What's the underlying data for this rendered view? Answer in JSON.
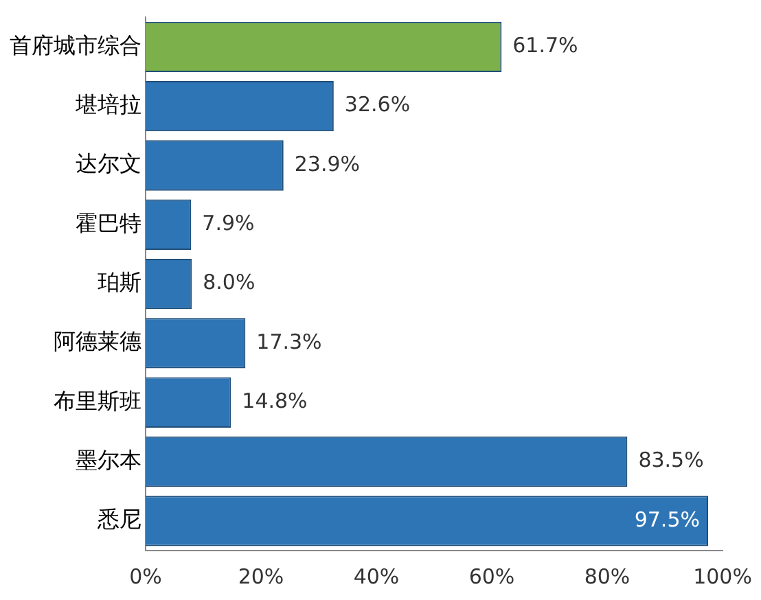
{
  "chart_data": {
    "type": "bar",
    "orientation": "horizontal",
    "categories": [
      "首府城市综合",
      "堪培拉",
      "达尔文",
      "霍巴特",
      "珀斯",
      "阿德莱德",
      "布里斯班",
      "墨尔本",
      "悉尼"
    ],
    "values": [
      61.7,
      32.6,
      23.9,
      7.9,
      8.0,
      17.3,
      14.8,
      83.5,
      97.5
    ],
    "colors": [
      "#7cb04a",
      "#2e75b6",
      "#2e75b6",
      "#2e75b6",
      "#2e75b6",
      "#2e75b6",
      "#2e75b6",
      "#2e75b6",
      "#2e75b6"
    ],
    "value_labels": [
      "61.7%",
      "32.6%",
      "23.9%",
      "7.9%",
      "8.0%",
      "17.3%",
      "14.8%",
      "83.5%",
      "97.5%"
    ],
    "xlim": [
      0,
      100
    ],
    "xticks": [
      {
        "value": 0,
        "label": "0%"
      },
      {
        "value": 20,
        "label": "20%"
      },
      {
        "value": 40,
        "label": "40%"
      },
      {
        "value": 60,
        "label": "60%"
      },
      {
        "value": 80,
        "label": "80%"
      },
      {
        "value": 100,
        "label": "100%"
      }
    ],
    "grid": false,
    "legend": false
  }
}
